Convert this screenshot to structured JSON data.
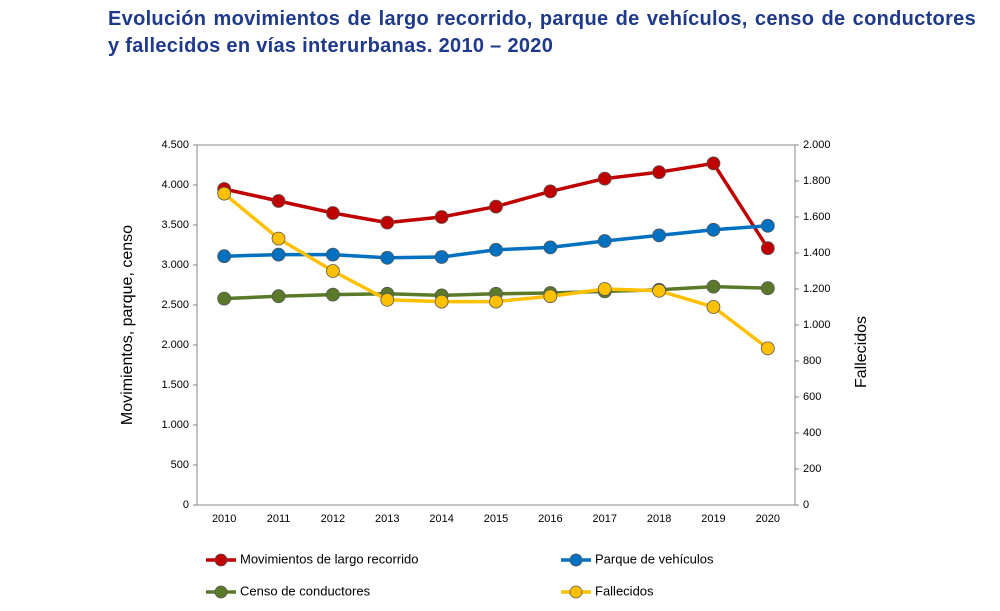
{
  "chart_data": {
    "type": "line",
    "title": "Evolución movimientos de largo recorrido, parque de vehículos, censo de conductores y fallecidos en vías interurbanas. 2010 – 2020",
    "ylabel": "Movimientos, parque, censo",
    "y2label": "Fallecidos",
    "categories": [
      "2010",
      "2011",
      "2012",
      "2013",
      "2014",
      "2015",
      "2016",
      "2017",
      "2018",
      "2019",
      "2020"
    ],
    "series": [
      {
        "name": "Movimientos de largo recorrido",
        "color": "#c00000",
        "values": [
          3950,
          3800,
          3650,
          3530,
          3600,
          3730,
          3920,
          4080,
          4160,
          4270,
          3210
        ]
      },
      {
        "name": "Parque de vehículos",
        "color": "#0070c0",
        "values": [
          3110,
          3130,
          3130,
          3090,
          3100,
          3190,
          3220,
          3300,
          3370,
          3440,
          3490
        ]
      },
      {
        "name": "Censo de conductores",
        "color": "#5a7a2a",
        "values": [
          2580,
          2610,
          2630,
          2640,
          2620,
          2640,
          2650,
          2670,
          2690,
          2730,
          2710
        ]
      },
      {
        "name": "Fallecidos",
        "color": "#ffc000",
        "axis": "y2",
        "values": [
          1730,
          1480,
          1300,
          1140,
          1130,
          1130,
          1160,
          1200,
          1190,
          1100,
          870
        ]
      }
    ],
    "ylim": [
      0,
      4500
    ],
    "yticks": [
      0,
      500,
      {
        "value": 1000,
        "label": "1.000"
      },
      {
        "value": 1500,
        "label": "1.500"
      },
      {
        "value": 2000,
        "label": "2.000"
      },
      {
        "value": 2500,
        "label": "2.500"
      },
      {
        "value": 3000,
        "label": "3.000"
      },
      {
        "value": 3500,
        "label": "3.500"
      },
      {
        "value": 4000,
        "label": "4.000"
      },
      {
        "value": 4500,
        "label": "4.500"
      }
    ],
    "y2lim": [
      0,
      2000
    ],
    "y2ticks": [
      0,
      200,
      400,
      600,
      800,
      {
        "value": 1000,
        "label": "1.000"
      },
      {
        "value": 1200,
        "label": "1.200"
      },
      {
        "value": 1400,
        "label": "1.400"
      },
      {
        "value": 1600,
        "label": "1.600"
      },
      {
        "value": 1800,
        "label": "1.800"
      },
      {
        "value": 2000,
        "label": "2.000"
      }
    ],
    "grid": false
  }
}
